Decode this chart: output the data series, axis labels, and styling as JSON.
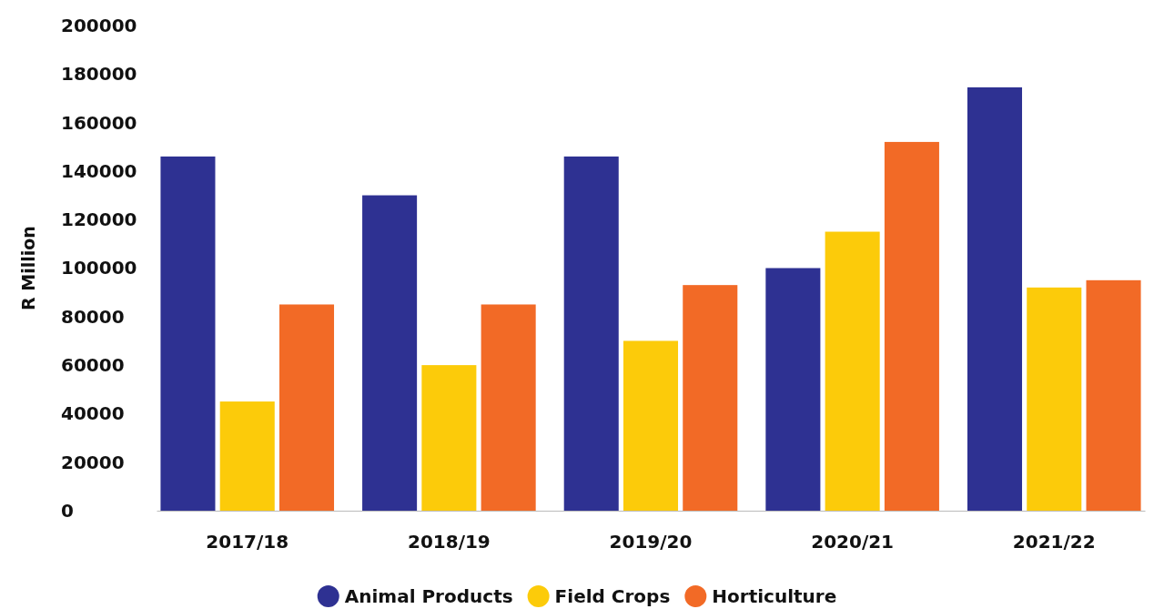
{
  "chart_data": {
    "type": "bar",
    "ylabel": "R Million",
    "categories": [
      "2017/18",
      "2018/19",
      "2019/20",
      "2020/21",
      "2021/22"
    ],
    "series": [
      {
        "name": "Animal Products",
        "color": "#2e3192",
        "values": [
          146000,
          130000,
          146000,
          100000,
          174500
        ]
      },
      {
        "name": "Field Crops",
        "color": "#fccb0a",
        "values": [
          45000,
          60000,
          70000,
          115000,
          92000
        ]
      },
      {
        "name": "Horticulture",
        "color": "#f26a26",
        "values": [
          85000,
          85000,
          93000,
          152000,
          95000
        ]
      }
    ],
    "ylim": [
      0,
      200000
    ],
    "yticks": [
      0,
      20000,
      40000,
      60000,
      80000,
      100000,
      120000,
      140000,
      160000,
      180000,
      200000
    ],
    "grid": false,
    "legend": "bottom"
  }
}
